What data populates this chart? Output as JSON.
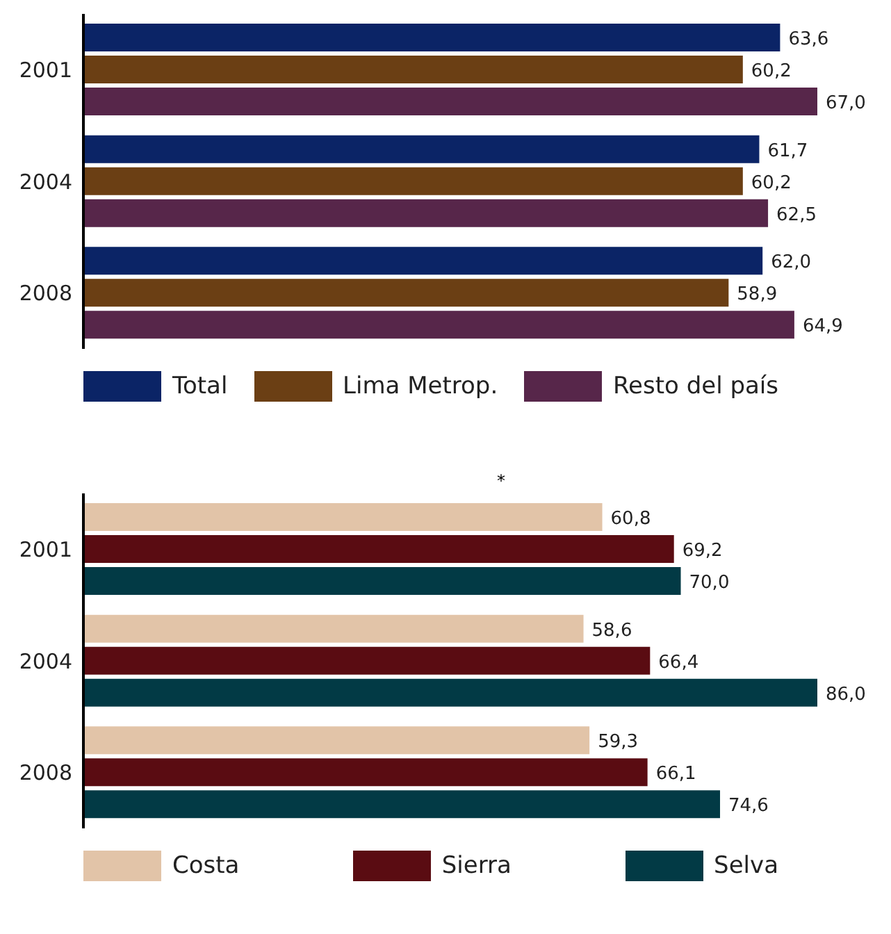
{
  "chart_data": [
    {
      "type": "bar",
      "orientation": "horizontal",
      "categories": [
        "2001",
        "2004",
        "2008"
      ],
      "legend": "bottom",
      "series": [
        {
          "name": "Total",
          "color": "#0b2466",
          "values": [
            63.6,
            61.7,
            62.0
          ],
          "value_labels": [
            "63,6",
            "61,7",
            "62,0"
          ]
        },
        {
          "name": "Lima Metrop.",
          "color": "#6b3f14",
          "values": [
            60.2,
            60.2,
            58.9
          ],
          "value_labels": [
            "60,2",
            "60,2",
            "58,9"
          ]
        },
        {
          "name": "Resto del país",
          "color": "#57264a",
          "values": [
            67.0,
            62.5,
            64.9
          ],
          "value_labels": [
            "67,0",
            "62,5",
            "64,9"
          ]
        }
      ]
    },
    {
      "type": "bar",
      "orientation": "horizontal",
      "categories": [
        "2001",
        "2004",
        "2008"
      ],
      "legend": "bottom",
      "annotations": [
        "*"
      ],
      "series": [
        {
          "name": "Costa",
          "color": "#e2c4a8",
          "values": [
            60.8,
            58.6,
            59.3
          ],
          "value_labels": [
            "60,8",
            "58,6",
            "59,3"
          ]
        },
        {
          "name": "Sierra",
          "color": "#5a0c12",
          "values": [
            69.2,
            66.4,
            66.1
          ],
          "value_labels": [
            "69,2",
            "66,4",
            "66,1"
          ]
        },
        {
          "name": "Selva",
          "color": "#023a45",
          "values": [
            70.0,
            86.0,
            74.6
          ],
          "value_labels": [
            "70,0",
            "86,0",
            "74,6"
          ]
        }
      ]
    }
  ]
}
